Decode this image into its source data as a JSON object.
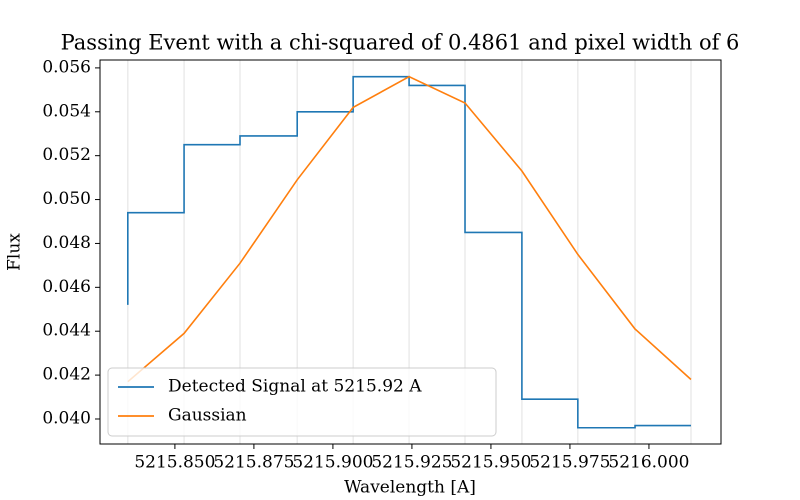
{
  "chart_data": {
    "type": "line",
    "title": "Passing Event with a chi-squared of 0.4861 and pixel width of 6",
    "xlabel": "Wavelength [A]",
    "ylabel": "Flux",
    "x": [
      5215.8351,
      5215.8529,
      5215.8706,
      5215.8887,
      5215.9064,
      5215.9241,
      5215.9418,
      5215.9598,
      5215.9775,
      5215.9956,
      5216.0133
    ],
    "series": [
      {
        "name": "Detected Signal at 5215.92 A",
        "color": "#1f77b4",
        "drawstyle": "steps-pre",
        "values": [
          0.0452,
          0.0494,
          0.0525,
          0.0529,
          0.054,
          0.0556,
          0.0552,
          0.0485,
          0.0409,
          0.0396,
          0.0397
        ]
      },
      {
        "name": "Gaussian",
        "color": "#ff7f0e",
        "drawstyle": "default",
        "values": [
          0.0417,
          0.0439,
          0.0471,
          0.0509,
          0.0542,
          0.0556,
          0.0544,
          0.0513,
          0.0475,
          0.0441,
          0.0418
        ]
      }
    ],
    "xlim": [
      5215.8263,
      5216.0228
    ],
    "xticks": [
      {
        "value": 5215.85,
        "label": "5215.850"
      },
      {
        "value": 5215.875,
        "label": "5215.875"
      },
      {
        "value": 5215.9,
        "label": "5215.900"
      },
      {
        "value": 5215.925,
        "label": "5215.925"
      },
      {
        "value": 5215.95,
        "label": "5215.950"
      },
      {
        "value": 5215.975,
        "label": "5215.975"
      },
      {
        "value": 5216.0,
        "label": "5216.000"
      }
    ],
    "ylim": [
      0.03886,
      0.05636
    ],
    "yticks": [
      {
        "value": 0.04,
        "label": "0.040"
      },
      {
        "value": 0.042,
        "label": "0.042"
      },
      {
        "value": 0.044,
        "label": "0.044"
      },
      {
        "value": 0.046,
        "label": "0.046"
      },
      {
        "value": 0.048,
        "label": "0.048"
      },
      {
        "value": 0.05,
        "label": "0.050"
      },
      {
        "value": 0.052,
        "label": "0.052"
      },
      {
        "value": 0.054,
        "label": "0.054"
      },
      {
        "value": 0.056,
        "label": "0.056"
      }
    ],
    "vlines_at_x": true,
    "legend": "lower left"
  }
}
